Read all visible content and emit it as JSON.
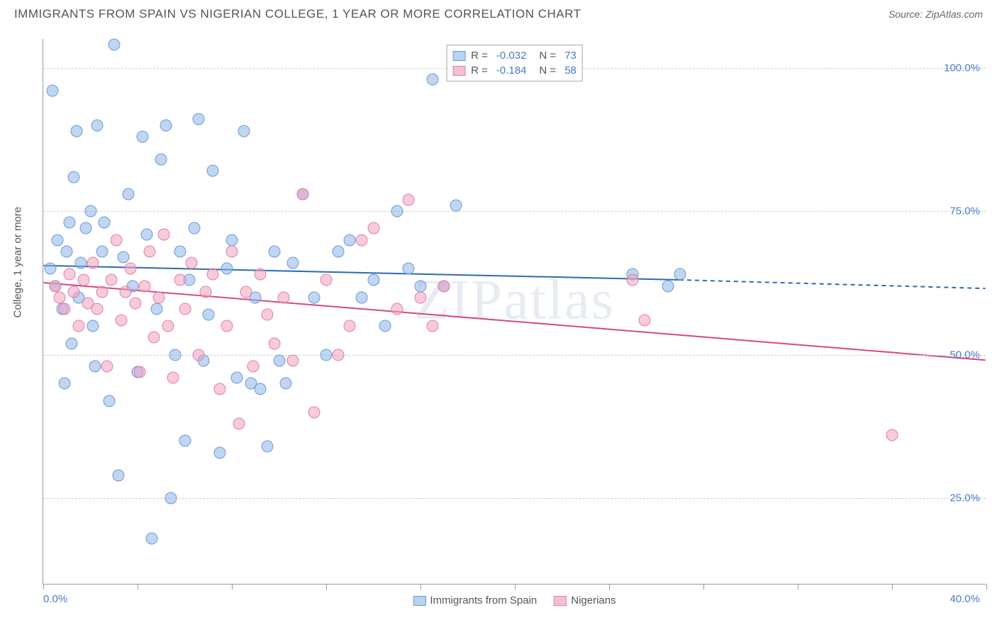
{
  "header": {
    "title": "IMMIGRANTS FROM SPAIN VS NIGERIAN COLLEGE, 1 YEAR OR MORE CORRELATION CHART",
    "source": "Source: ZipAtlas.com"
  },
  "chart": {
    "type": "scatter",
    "watermark": "ZIPatlas",
    "y_axis_title": "College, 1 year or more",
    "background_color": "#ffffff",
    "grid_color": "#cccccc",
    "xlim": [
      0,
      40
    ],
    "ylim": [
      10,
      105
    ],
    "x_ticks_minor": [
      0,
      4,
      8,
      12,
      16,
      20,
      24,
      28,
      32,
      36,
      40
    ],
    "x_labels": {
      "min": "0.0%",
      "max": "40.0%"
    },
    "y_ticks": [
      {
        "v": 25,
        "label": "25.0%"
      },
      {
        "v": 50,
        "label": "50.0%"
      },
      {
        "v": 75,
        "label": "75.0%"
      },
      {
        "v": 100,
        "label": "100.0%"
      }
    ],
    "series": [
      {
        "name": "Immigrants from Spain",
        "marker_fill": "rgba(140, 180, 230, 0.55)",
        "marker_stroke": "#6a9bd8",
        "line_color": "#2b6cb0",
        "line_width": 2,
        "legend_fill": "#b9d3ef",
        "legend_stroke": "#6a9bd8",
        "R": "-0.032",
        "N": "73",
        "trend": {
          "x1": 0,
          "y1": 65.5,
          "x2_solid": 27,
          "y2_solid": 63,
          "x2_dash": 40,
          "y2_dash": 61.5
        },
        "points": [
          [
            0.3,
            65
          ],
          [
            0.4,
            96
          ],
          [
            0.5,
            62
          ],
          [
            0.6,
            70
          ],
          [
            0.8,
            58
          ],
          [
            0.9,
            45
          ],
          [
            1.0,
            68
          ],
          [
            1.1,
            73
          ],
          [
            1.2,
            52
          ],
          [
            1.3,
            81
          ],
          [
            1.4,
            89
          ],
          [
            1.5,
            60
          ],
          [
            1.6,
            66
          ],
          [
            1.8,
            72
          ],
          [
            2.0,
            75
          ],
          [
            2.1,
            55
          ],
          [
            2.2,
            48
          ],
          [
            2.3,
            90
          ],
          [
            2.5,
            68
          ],
          [
            2.6,
            73
          ],
          [
            2.8,
            42
          ],
          [
            3.0,
            104
          ],
          [
            3.2,
            29
          ],
          [
            3.4,
            67
          ],
          [
            3.6,
            78
          ],
          [
            3.8,
            62
          ],
          [
            4.0,
            47
          ],
          [
            4.2,
            88
          ],
          [
            4.4,
            71
          ],
          [
            4.6,
            18
          ],
          [
            4.8,
            58
          ],
          [
            5.0,
            84
          ],
          [
            5.2,
            90
          ],
          [
            5.4,
            25
          ],
          [
            5.6,
            50
          ],
          [
            5.8,
            68
          ],
          [
            6.0,
            35
          ],
          [
            6.2,
            63
          ],
          [
            6.4,
            72
          ],
          [
            6.6,
            91
          ],
          [
            6.8,
            49
          ],
          [
            7.0,
            57
          ],
          [
            7.2,
            82
          ],
          [
            7.5,
            33
          ],
          [
            7.8,
            65
          ],
          [
            8.0,
            70
          ],
          [
            8.2,
            46
          ],
          [
            8.5,
            89
          ],
          [
            8.8,
            45
          ],
          [
            9.0,
            60
          ],
          [
            9.2,
            44
          ],
          [
            9.5,
            34
          ],
          [
            9.8,
            68
          ],
          [
            10.0,
            49
          ],
          [
            10.3,
            45
          ],
          [
            10.6,
            66
          ],
          [
            11.0,
            78
          ],
          [
            11.5,
            60
          ],
          [
            12.0,
            50
          ],
          [
            12.5,
            68
          ],
          [
            13.0,
            70
          ],
          [
            13.5,
            60
          ],
          [
            14.0,
            63
          ],
          [
            14.5,
            55
          ],
          [
            15.0,
            75
          ],
          [
            15.5,
            65
          ],
          [
            16.0,
            62
          ],
          [
            16.5,
            98
          ],
          [
            17.0,
            62
          ],
          [
            17.5,
            76
          ],
          [
            25.0,
            64
          ],
          [
            26.5,
            62
          ],
          [
            27.0,
            64
          ]
        ]
      },
      {
        "name": "Nigerians",
        "marker_fill": "rgba(240, 160, 190, 0.55)",
        "marker_stroke": "#e07fa8",
        "line_color": "#d6487f",
        "line_width": 2,
        "legend_fill": "#f4c1d4",
        "legend_stroke": "#e07fa8",
        "R": "-0.184",
        "N": "58",
        "trend": {
          "x1": 0,
          "y1": 62.5,
          "x2_solid": 40,
          "y2_solid": 49,
          "x2_dash": 40,
          "y2_dash": 49
        },
        "points": [
          [
            0.5,
            62
          ],
          [
            0.7,
            60
          ],
          [
            0.9,
            58
          ],
          [
            1.1,
            64
          ],
          [
            1.3,
            61
          ],
          [
            1.5,
            55
          ],
          [
            1.7,
            63
          ],
          [
            1.9,
            59
          ],
          [
            2.1,
            66
          ],
          [
            2.3,
            58
          ],
          [
            2.5,
            61
          ],
          [
            2.7,
            48
          ],
          [
            2.9,
            63
          ],
          [
            3.1,
            70
          ],
          [
            3.3,
            56
          ],
          [
            3.5,
            61
          ],
          [
            3.7,
            65
          ],
          [
            3.9,
            59
          ],
          [
            4.1,
            47
          ],
          [
            4.3,
            62
          ],
          [
            4.5,
            68
          ],
          [
            4.7,
            53
          ],
          [
            4.9,
            60
          ],
          [
            5.1,
            71
          ],
          [
            5.3,
            55
          ],
          [
            5.5,
            46
          ],
          [
            5.8,
            63
          ],
          [
            6.0,
            58
          ],
          [
            6.3,
            66
          ],
          [
            6.6,
            50
          ],
          [
            6.9,
            61
          ],
          [
            7.2,
            64
          ],
          [
            7.5,
            44
          ],
          [
            7.8,
            55
          ],
          [
            8.0,
            68
          ],
          [
            8.3,
            38
          ],
          [
            8.6,
            61
          ],
          [
            8.9,
            48
          ],
          [
            9.2,
            64
          ],
          [
            9.5,
            57
          ],
          [
            9.8,
            52
          ],
          [
            10.2,
            60
          ],
          [
            10.6,
            49
          ],
          [
            11.0,
            78
          ],
          [
            11.5,
            40
          ],
          [
            12.0,
            63
          ],
          [
            12.5,
            50
          ],
          [
            13.0,
            55
          ],
          [
            13.5,
            70
          ],
          [
            14.0,
            72
          ],
          [
            15.0,
            58
          ],
          [
            15.5,
            77
          ],
          [
            16.0,
            60
          ],
          [
            16.5,
            55
          ],
          [
            17.0,
            62
          ],
          [
            25.0,
            63
          ],
          [
            25.5,
            56
          ],
          [
            36.0,
            36
          ]
        ]
      }
    ],
    "legend_bottom": [
      {
        "label": "Immigrants from Spain",
        "fill": "#b9d3ef",
        "stroke": "#6a9bd8"
      },
      {
        "label": "Nigerians",
        "fill": "#f4c1d4",
        "stroke": "#e07fa8"
      }
    ]
  }
}
